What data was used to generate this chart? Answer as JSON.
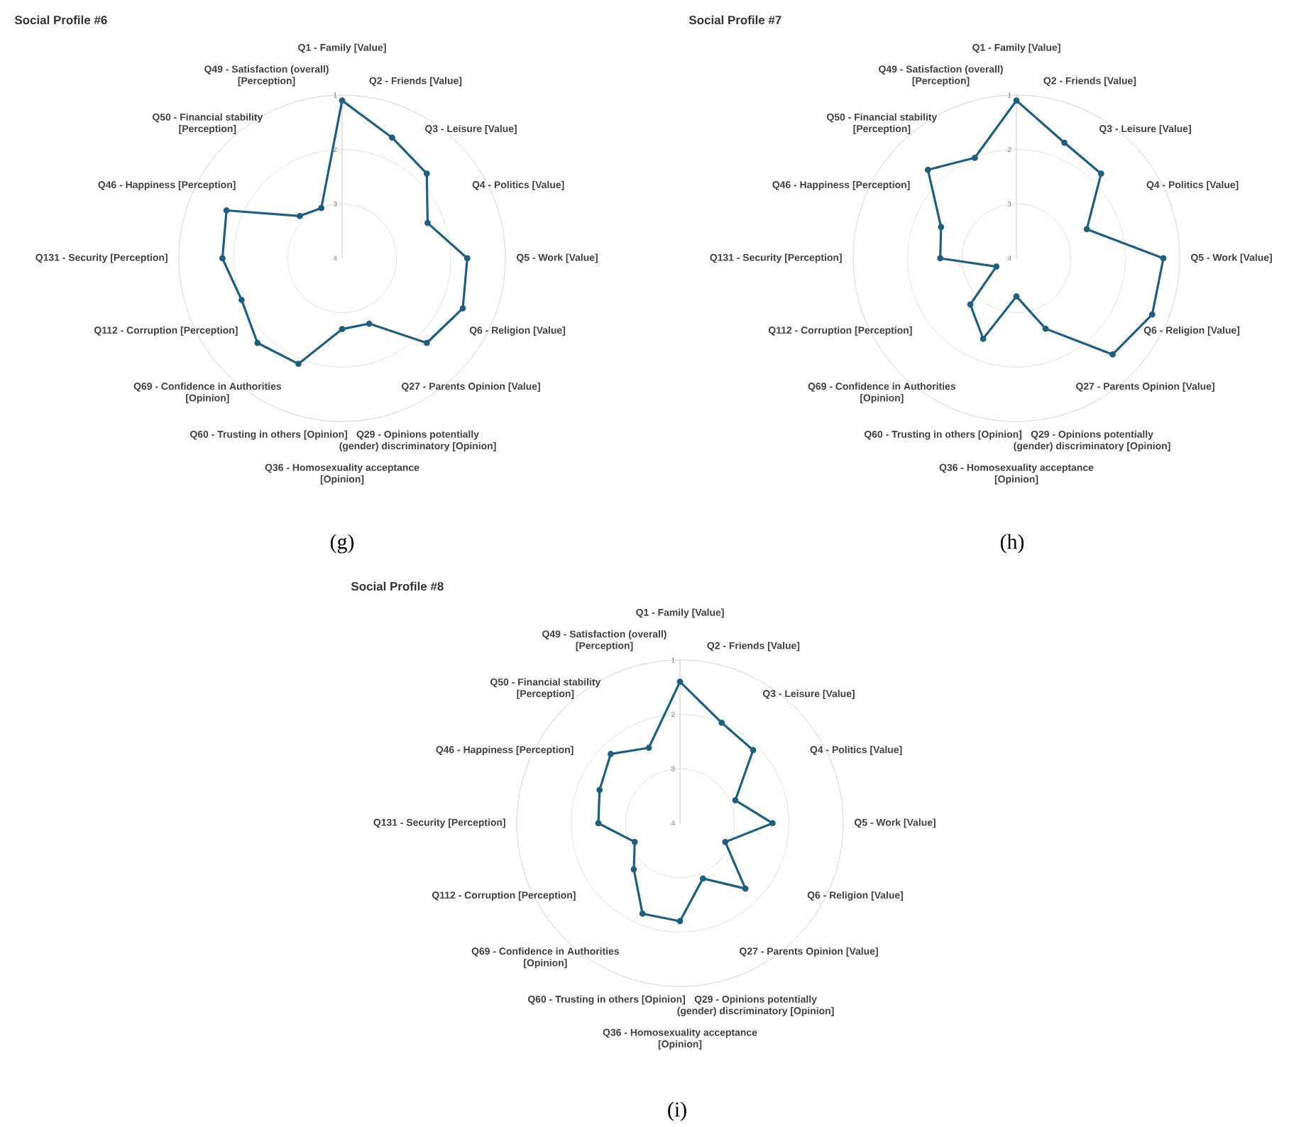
{
  "chart_data": [
    {
      "type": "radar",
      "title": "Social Profile #6",
      "categories": [
        "Q1 - Family [Value]",
        "Q2 - Friends [Value]",
        "Q3 - Leisure [Value]",
        "Q4 - Politics [Value]",
        "Q5 - Work [Value]",
        "Q6 - Religion [Value]",
        "Q27 - Parents Opinion [Value]",
        "Q29 - Opinions potentially (gender) discriminatory [Opinion]",
        "Q36 - Homosexuality acceptance [Opinion]",
        "Q60 - Trusting in others [Opinion]",
        "Q69 - Confidence in Authorities [Opinion]",
        "Q112 - Corruption [Perception]",
        "Q131 - Security [Perception]",
        "Q46 - Happiness [Perception]",
        "Q50 - Financial stability [Perception]",
        "Q49 - Satisfaction (overall) [Perception]"
      ],
      "series": [
        {
          "color": "#215e7c",
          "values": [
            1.1,
            1.6,
            1.8,
            2.3,
            1.7,
            1.6,
            1.8,
            2.7,
            2.7,
            1.9,
            1.8,
            2.0,
            1.8,
            1.7,
            2.9,
            3.0
          ]
        }
      ],
      "ylim": [
        4,
        1
      ],
      "yticks": [
        1,
        2,
        3,
        4
      ],
      "grid": true,
      "marker": "circle",
      "annotations": [
        "(g)"
      ]
    },
    {
      "type": "radar",
      "title": "Social Profile #7",
      "categories": [
        "Q1 - Family [Value]",
        "Q2 - Friends [Value]",
        "Q3 - Leisure [Value]",
        "Q4 - Politics [Value]",
        "Q5 - Work [Value]",
        "Q6 - Religion [Value]",
        "Q27 - Parents Opinion [Value]",
        "Q29 - Opinions potentially (gender) discriminatory [Opinion]",
        "Q36 - Homosexuality acceptance [Opinion]",
        "Q60 - Trusting in others [Opinion]",
        "Q69 - Confidence in Authorities [Opinion]",
        "Q112 - Corruption [Perception]",
        "Q131 - Security [Perception]",
        "Q46 - Happiness [Perception]",
        "Q50 - Financial stability [Perception]",
        "Q49 - Satisfaction (overall) [Perception]"
      ],
      "series": [
        {
          "color": "#215e7c",
          "values": [
            1.1,
            1.7,
            1.8,
            2.6,
            1.3,
            1.3,
            1.5,
            2.6,
            3.3,
            2.4,
            2.8,
            3.6,
            2.6,
            2.5,
            1.7,
            2.0
          ]
        }
      ],
      "ylim": [
        4,
        1
      ],
      "yticks": [
        1,
        2,
        3,
        4
      ],
      "grid": true,
      "marker": "circle",
      "annotations": [
        "(h)"
      ]
    },
    {
      "type": "radar",
      "title": "Social Profile #8",
      "categories": [
        "Q1 - Family [Value]",
        "Q2 - Friends [Value]",
        "Q3 - Leisure [Value]",
        "Q4 - Politics [Value]",
        "Q5 - Work [Value]",
        "Q6 - Religion [Value]",
        "Q27 - Parents Opinion [Value]",
        "Q29 - Opinions potentially (gender) discriminatory [Opinion]",
        "Q36 - Homosexuality acceptance [Opinion]",
        "Q60 - Trusting in others [Opinion]",
        "Q69 - Confidence in Authorities [Opinion]",
        "Q112 - Corruption [Perception]",
        "Q131 - Security [Perception]",
        "Q46 - Happiness [Perception]",
        "Q50 - Financial stability [Perception]",
        "Q49 - Satisfaction (overall) [Perception]"
      ],
      "series": [
        {
          "color": "#215e7c",
          "values": [
            1.4,
            2.0,
            2.1,
            2.9,
            2.3,
            3.1,
            2.3,
            2.9,
            2.2,
            2.2,
            2.8,
            3.1,
            2.5,
            2.4,
            2.2,
            2.5
          ]
        }
      ],
      "ylim": [
        4,
        1
      ],
      "yticks": [
        1,
        2,
        3,
        4
      ],
      "grid": true,
      "marker": "circle",
      "annotations": [
        "(i)"
      ]
    }
  ]
}
